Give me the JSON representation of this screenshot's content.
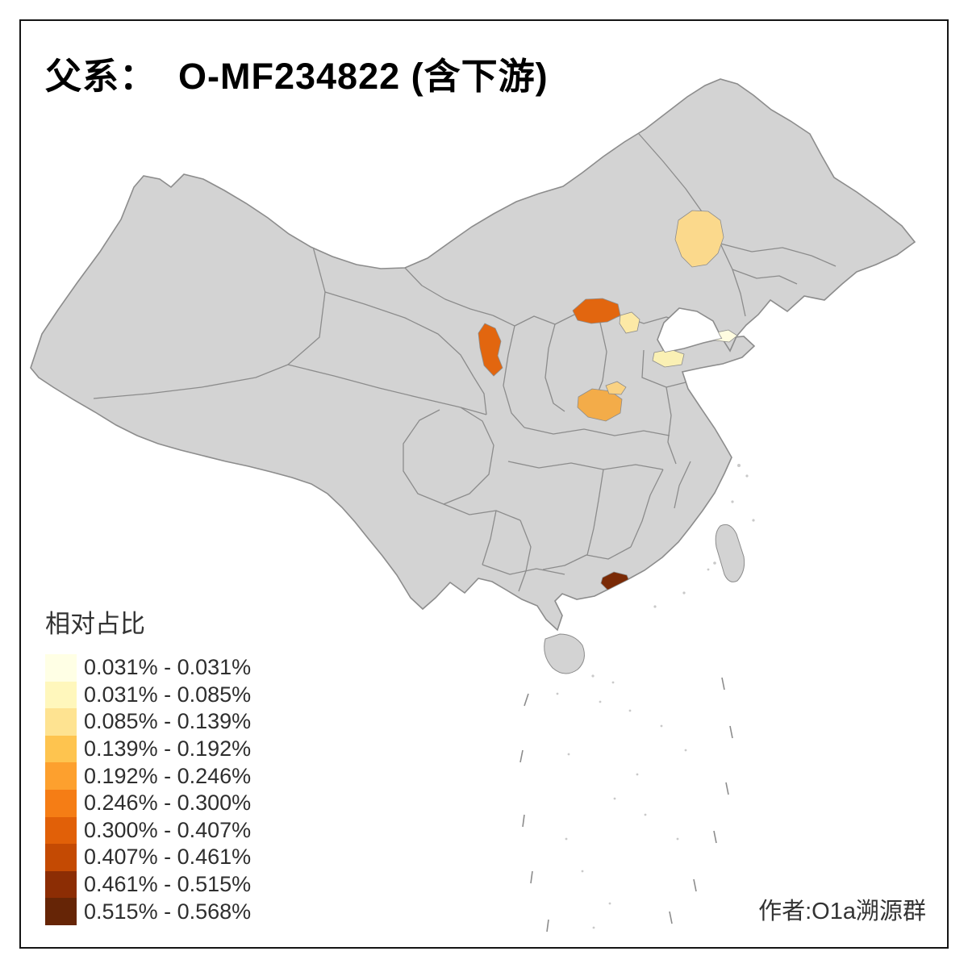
{
  "title": "父系：  O-MF234822 (含下游)",
  "legend": {
    "title": "相对占比",
    "items": [
      {
        "label": "0.031% - 0.031%",
        "color": "#FFFFE5"
      },
      {
        "label": "0.031% - 0.085%",
        "color": "#FFF7BC"
      },
      {
        "label": "0.085% - 0.139%",
        "color": "#FEE391"
      },
      {
        "label": "0.139% - 0.192%",
        "color": "#FEC44F"
      },
      {
        "label": "0.192% - 0.246%",
        "color": "#FDA02E"
      },
      {
        "label": "0.246% - 0.300%",
        "color": "#F57D15"
      },
      {
        "label": "0.300% - 0.407%",
        "color": "#E16008"
      },
      {
        "label": "0.407% - 0.461%",
        "color": "#C44A03"
      },
      {
        "label": "0.461% - 0.515%",
        "color": "#8C2D04"
      },
      {
        "label": "0.515% - 0.568%",
        "color": "#662506"
      }
    ]
  },
  "attribution": "作者:O1a溯源群",
  "map": {
    "land_color": "#D3D3D3",
    "border_color": "#8C8C8C",
    "background": "#FFFFFF",
    "regions": [
      {
        "id": "r1",
        "color": "#FBD98C"
      },
      {
        "id": "r2",
        "color": "#E2660F"
      },
      {
        "id": "r3",
        "color": "#FCE9A6"
      },
      {
        "id": "r4",
        "color": "#E2660F"
      },
      {
        "id": "r5",
        "color": "#FFFCE0"
      },
      {
        "id": "r6",
        "color": "#FAF0B4"
      },
      {
        "id": "r7",
        "color": "#F3AC49"
      },
      {
        "id": "r8",
        "color": "#FAD283"
      },
      {
        "id": "r9",
        "color": "#7A2A06"
      }
    ]
  }
}
